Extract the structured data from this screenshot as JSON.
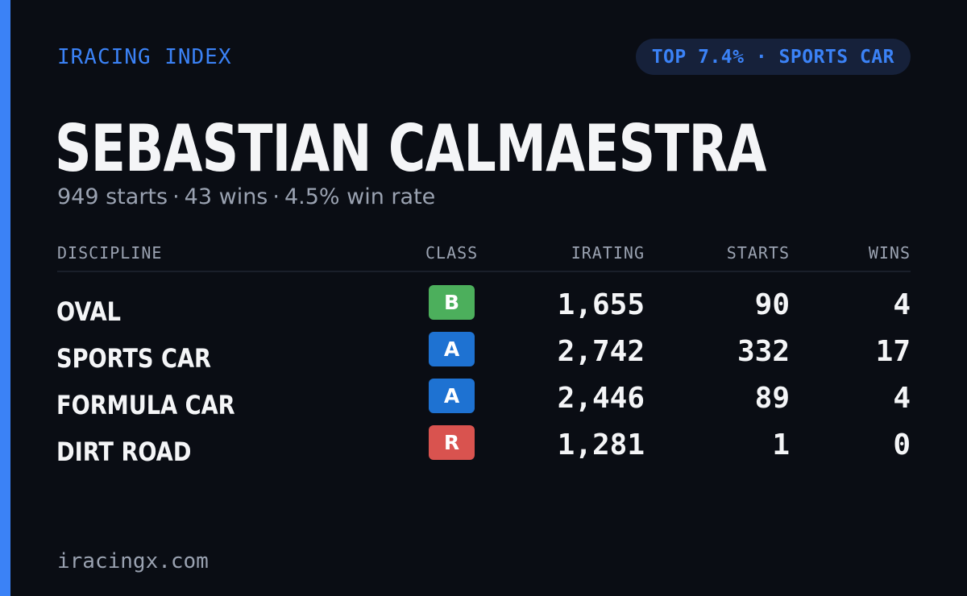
{
  "brand": "IRACING INDEX",
  "rank_pill": "TOP 7.4% · SPORTS CAR",
  "driver_name": "SEBASTIAN CALMAESTRA",
  "summary": {
    "starts": "949 starts",
    "wins": "43 wins",
    "win_rate": "4.5% win rate",
    "separator": "·"
  },
  "table": {
    "headers": {
      "discipline": "DISCIPLINE",
      "class": "CLASS",
      "irating": "IRATING",
      "starts": "STARTS",
      "wins": "WINS"
    },
    "rows": [
      {
        "discipline": "OVAL",
        "class": "B",
        "class_color": "#4caf5c",
        "irating": "1,655",
        "starts": "90",
        "wins": "4"
      },
      {
        "discipline": "SPORTS CAR",
        "class": "A",
        "class_color": "#1e72d2",
        "irating": "2,742",
        "starts": "332",
        "wins": "17"
      },
      {
        "discipline": "FORMULA CAR",
        "class": "A",
        "class_color": "#1e72d2",
        "irating": "2,446",
        "starts": "89",
        "wins": "4"
      },
      {
        "discipline": "DIRT ROAD",
        "class": "R",
        "class_color": "#d9534f",
        "irating": "1,281",
        "starts": "1",
        "wins": "0"
      }
    ]
  },
  "footer": "iracingx.com",
  "colors": {
    "accent": "#3b82f6",
    "background": "#0a0d14",
    "text": "#f4f5f7",
    "muted": "#9aa2b1"
  }
}
